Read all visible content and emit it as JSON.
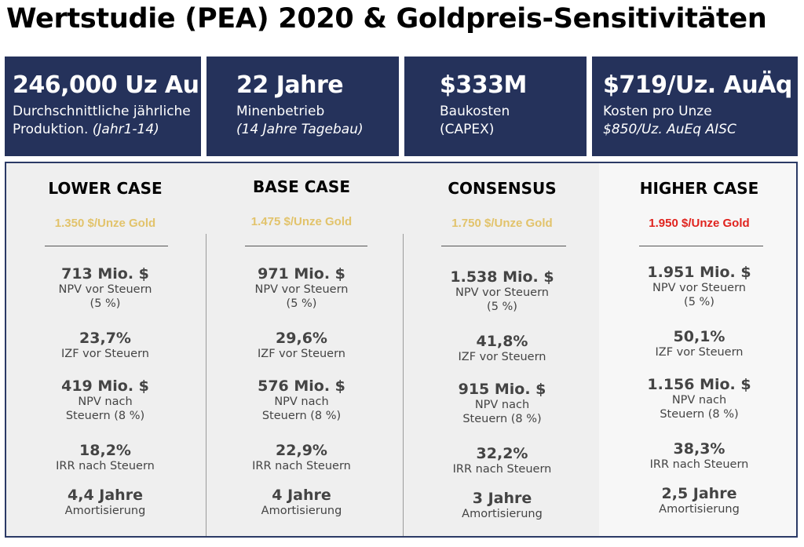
{
  "title": "Wertstudie (PEA) 2020 & Goldpreis-Sensitivitäten",
  "kpis": [
    {
      "value": "246,000 Uz Au",
      "line1": "Durchschnittliche jährliche",
      "line2": "Produktion.",
      "line2_italic": "(Jahr1-14)"
    },
    {
      "value": "22 Jahre",
      "line1": "Minenbetrieb",
      "line2": "",
      "line2_italic": "(14 Jahre Tagebau)"
    },
    {
      "value": "$333M",
      "line1": "Baukosten",
      "line2": "(CAPEX)",
      "line2_italic": ""
    },
    {
      "value": "$719/Uz. AuÄq",
      "line1": "Kosten pro Unze",
      "line2": "",
      "line2_italic": "$850/Uz. AuEq AISC"
    }
  ],
  "cases": [
    {
      "name": "LOWER CASE",
      "price": "1.350 $/Unze Gold",
      "price_color": "#e2c36b",
      "metrics": [
        {
          "value": "713 Mio. $",
          "label": [
            "NPV vor Steuern",
            "(5 %)"
          ]
        },
        {
          "value": "23,7%",
          "label": [
            "IZF vor Steuern"
          ]
        },
        {
          "value": "419 Mio. $",
          "label": [
            "NPV nach",
            "Steuern (8 %)"
          ]
        },
        {
          "value": "18,2%",
          "label": [
            "IRR nach Steuern"
          ]
        },
        {
          "value": "4,4 Jahre",
          "label": [
            "Amortisierung"
          ]
        }
      ]
    },
    {
      "name": "BASE CASE",
      "price": "1.475 $/Unze Gold",
      "price_color": "#e2c36b",
      "metrics": [
        {
          "value": "971 Mio. $",
          "label": [
            "NPV vor Steuern",
            "(5 %)"
          ]
        },
        {
          "value": "29,6%",
          "label": [
            "IZF vor Steuern"
          ]
        },
        {
          "value": "576 Mio. $",
          "label": [
            "NPV nach",
            "Steuern (8 %)"
          ]
        },
        {
          "value": "22,9%",
          "label": [
            "IRR nach Steuern"
          ]
        },
        {
          "value": "4 Jahre",
          "label": [
            "Amortisierung"
          ]
        }
      ]
    },
    {
      "name": "CONSENSUS",
      "price": "1.750 $/Unze Gold",
      "price_color": "#e2c36b",
      "metrics": [
        {
          "value": "1.538 Mio. $",
          "label": [
            "NPV vor Steuern",
            "(5 %)"
          ]
        },
        {
          "value": "41,8%",
          "label": [
            "IZF vor Steuern"
          ]
        },
        {
          "value": "915 Mio. $",
          "label": [
            "NPV nach",
            "Steuern (8 %)"
          ]
        },
        {
          "value": "32,2%",
          "label": [
            "IRR nach Steuern"
          ]
        },
        {
          "value": "3 Jahre",
          "label": [
            "Amortisierung"
          ]
        }
      ]
    },
    {
      "name": "HIGHER CASE",
      "price": "1.950 $/Unze Gold",
      "price_color": "#e0231e",
      "metrics": [
        {
          "value": "1.951 Mio. $",
          "label": [
            "NPV vor Steuern",
            "(5 %)"
          ]
        },
        {
          "value": "50,1%",
          "label": [
            "IZF vor Steuern"
          ]
        },
        {
          "value": "1.156 Mio. $",
          "label": [
            "NPV nach",
            "Steuern (8 %)"
          ]
        },
        {
          "value": "38,3%",
          "label": [
            "IRR nach Steuern"
          ]
        },
        {
          "value": "2,5 Jahre",
          "label": [
            "Amortisierung"
          ]
        }
      ]
    }
  ]
}
